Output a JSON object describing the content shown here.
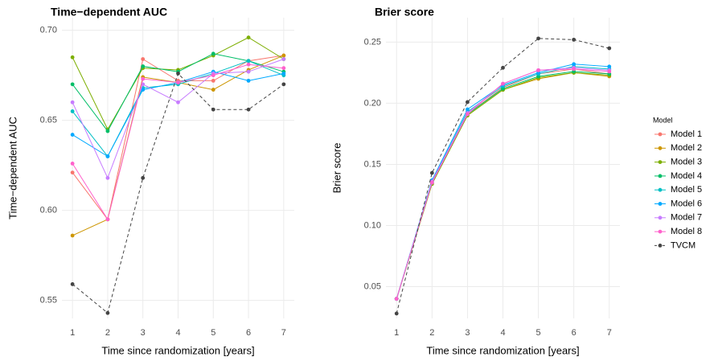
{
  "chart_data": [
    {
      "type": "line",
      "title": "Time−dependent AUC",
      "xlabel": "Time since randomization [years]",
      "ylabel": "Time−dependent AUC",
      "x": [
        1,
        2,
        3,
        4,
        5,
        6,
        7
      ],
      "xlim": [
        0.7,
        7.3
      ],
      "xticks": [
        1,
        2,
        3,
        4,
        5,
        6,
        7
      ],
      "ylim": [
        0.54,
        0.707
      ],
      "yticks": [
        {
          "value": 0.55,
          "label": "0.55"
        },
        {
          "value": 0.6,
          "label": "0.60"
        },
        {
          "value": 0.65,
          "label": "0.65"
        },
        {
          "value": 0.7,
          "label": "0.70"
        }
      ],
      "grid": true,
      "legend": {
        "title": "Model",
        "position": "right"
      },
      "series": [
        {
          "name": "Model 1",
          "color": "#F8766D",
          "dashed": false,
          "values": [
            0.621,
            0.595,
            0.684,
            0.672,
            0.672,
            0.683,
            0.686
          ]
        },
        {
          "name": "Model 2",
          "color": "#CD9600",
          "dashed": false,
          "values": [
            0.586,
            0.595,
            0.674,
            0.671,
            0.667,
            0.678,
            0.686
          ]
        },
        {
          "name": "Model 3",
          "color": "#7CAE00",
          "dashed": false,
          "values": [
            0.685,
            0.645,
            0.679,
            0.678,
            0.686,
            0.696,
            0.684
          ]
        },
        {
          "name": "Model 4",
          "color": "#00BE67",
          "dashed": false,
          "values": [
            0.67,
            0.644,
            0.68,
            0.677,
            0.687,
            0.683,
            0.677
          ]
        },
        {
          "name": "Model 5",
          "color": "#00BFC4",
          "dashed": false,
          "values": [
            0.655,
            0.63,
            0.668,
            0.67,
            0.676,
            0.683,
            0.675
          ]
        },
        {
          "name": "Model 6",
          "color": "#00A9FF",
          "dashed": false,
          "values": [
            0.642,
            0.63,
            0.667,
            0.671,
            0.677,
            0.672,
            0.676
          ]
        },
        {
          "name": "Model 7",
          "color": "#C77CFF",
          "dashed": false,
          "values": [
            0.66,
            0.618,
            0.67,
            0.66,
            0.676,
            0.677,
            0.684
          ]
        },
        {
          "name": "Model 8",
          "color": "#FF61CC",
          "dashed": false,
          "values": [
            0.626,
            0.595,
            0.673,
            0.671,
            0.675,
            0.681,
            0.679
          ]
        },
        {
          "name": "TVCM",
          "color": "#444444",
          "dashed": true,
          "values": [
            0.559,
            0.543,
            0.618,
            0.676,
            0.656,
            0.656,
            0.67
          ]
        }
      ]
    },
    {
      "type": "line",
      "title": "Brier score",
      "xlabel": "Time since randomization [years]",
      "ylabel": "Brier score",
      "x": [
        1,
        2,
        3,
        4,
        5,
        6,
        7
      ],
      "xlim": [
        0.7,
        7.3
      ],
      "xticks": [
        1,
        2,
        3,
        4,
        5,
        6,
        7
      ],
      "ylim": [
        0.024,
        0.27
      ],
      "yticks": [
        0.05,
        {
          "value": 0.1,
          "label": "0.10"
        },
        0.15,
        {
          "value": 0.2,
          "label": "0.20"
        },
        0.25
      ],
      "grid": true,
      "series": [
        {
          "name": "Model 1",
          "color": "#F8766D",
          "dashed": false,
          "values": [
            0.04,
            0.135,
            0.191,
            0.213,
            0.224,
            0.228,
            0.224
          ]
        },
        {
          "name": "Model 2",
          "color": "#CD9600",
          "dashed": false,
          "values": [
            0.04,
            0.134,
            0.19,
            0.211,
            0.22,
            0.225,
            0.222
          ]
        },
        {
          "name": "Model 3",
          "color": "#7CAE00",
          "dashed": false,
          "values": [
            0.04,
            0.134,
            0.19,
            0.211,
            0.221,
            0.225,
            0.223
          ]
        },
        {
          "name": "Model 4",
          "color": "#00BE67",
          "dashed": false,
          "values": [
            0.04,
            0.135,
            0.191,
            0.212,
            0.222,
            0.226,
            0.224
          ]
        },
        {
          "name": "Model 5",
          "color": "#00BFC4",
          "dashed": false,
          "values": [
            0.04,
            0.136,
            0.193,
            0.214,
            0.224,
            0.23,
            0.228
          ]
        },
        {
          "name": "Model 6",
          "color": "#00A9FF",
          "dashed": false,
          "values": [
            0.04,
            0.137,
            0.195,
            0.215,
            0.225,
            0.232,
            0.23
          ]
        },
        {
          "name": "Model 7",
          "color": "#C77CFF",
          "dashed": false,
          "values": [
            0.04,
            0.136,
            0.192,
            0.216,
            0.227,
            0.229,
            0.227
          ]
        },
        {
          "name": "Model 8",
          "color": "#FF61CC",
          "dashed": false,
          "values": [
            0.04,
            0.135,
            0.191,
            0.216,
            0.227,
            0.228,
            0.226
          ]
        },
        {
          "name": "TVCM",
          "color": "#444444",
          "dashed": true,
          "values": [
            0.028,
            0.143,
            0.201,
            0.229,
            0.253,
            0.252,
            0.245
          ]
        }
      ]
    }
  ]
}
